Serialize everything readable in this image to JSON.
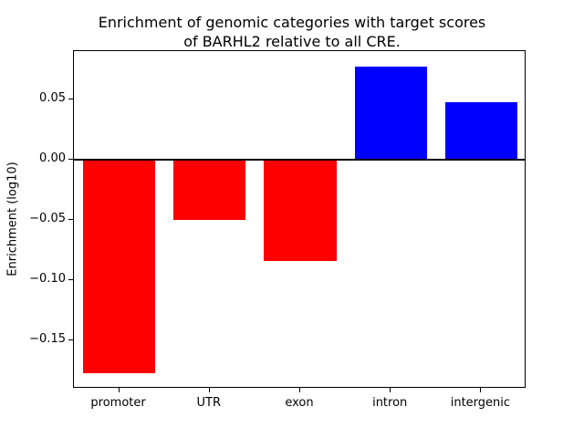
{
  "chart_data": {
    "type": "bar",
    "title_line1": "Enrichment of genomic categories with target scores",
    "title_line2": "of BARHL2 relative to all CRE.",
    "ylabel": "Enrichment (log10)",
    "categories": [
      "promoter",
      "UTR",
      "exon",
      "intron",
      "intergenic"
    ],
    "values": [
      -0.177,
      -0.05,
      -0.084,
      0.077,
      0.048
    ],
    "bar_colors": [
      "#ff0000",
      "#ff0000",
      "#ff0000",
      "#0000ff",
      "#0000ff"
    ],
    "yticks": [
      0.05,
      0.0,
      -0.05,
      -0.1,
      -0.15
    ],
    "ytick_labels": [
      "0.05",
      "0.00",
      "−0.05",
      "−0.10",
      "−0.15"
    ],
    "ylim": [
      -0.19,
      0.09
    ],
    "grid": false,
    "legend": "none",
    "color_positive": "#0000ff",
    "color_negative": "#ff0000",
    "zero_line_color": "#000000"
  }
}
